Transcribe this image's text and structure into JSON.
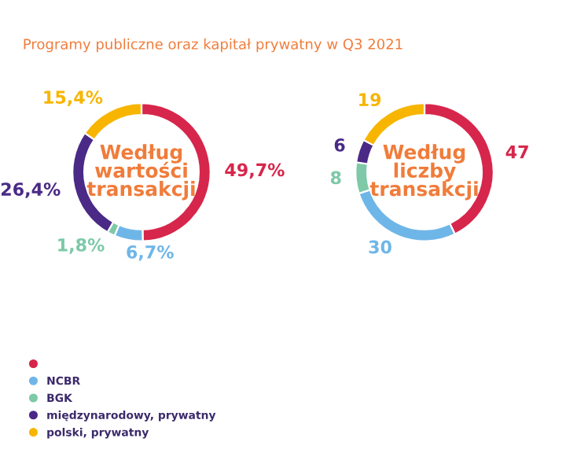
{
  "chart_data": [
    {
      "type": "donut",
      "title": "Według\nwartości\ntransakcji",
      "annotations": [
        "Programy publiczne oraz kapitał prywatny w Q3 2021"
      ],
      "categories": [
        null,
        "NCBR",
        "BGK",
        "międzynarodowy, prywatny",
        "polski, prywatny"
      ],
      "values": [
        49.7,
        6.7,
        1.8,
        26.4,
        15.4
      ],
      "colors": [
        "#d7264b",
        "#6fb6e8",
        "#7dc9a8",
        "#4a2a86",
        "#f7b500"
      ],
      "value_labels": [
        "49,7%",
        "6,7%",
        "1,8%",
        "26,4%",
        "15,4%"
      ],
      "legend": "bottom left"
    },
    {
      "type": "donut",
      "title": "Według\nliczby\ntransakcji",
      "values": [
        47,
        30,
        8,
        6,
        19
      ],
      "colors": [
        "#d7264b",
        "#6fb6e8",
        "#7dc9a8",
        "#4a2a86",
        "#f7b500"
      ],
      "data_labels": true
    }
  ]
}
